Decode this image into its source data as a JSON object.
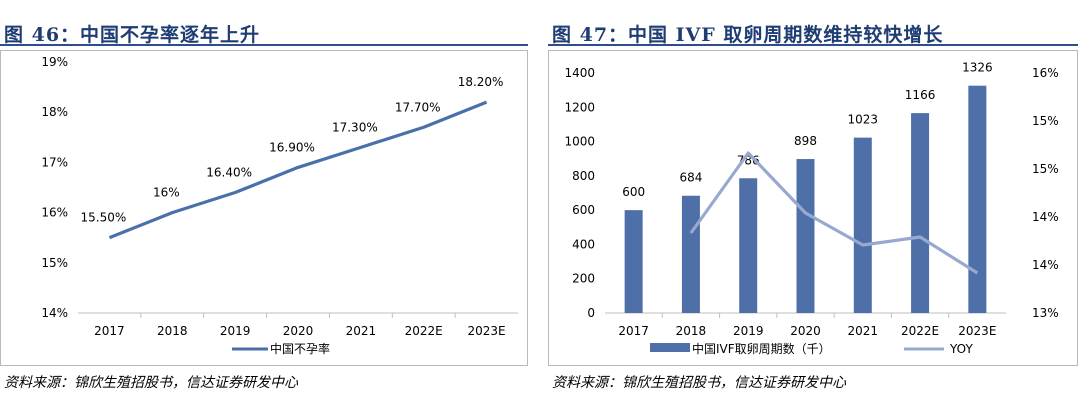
{
  "left_panel": {
    "figure_title": "图 46：中国不孕率逐年上升",
    "source": "资料来源：锦欣生殖招股书，信达证券研发中心"
  },
  "right_panel": {
    "figure_title": "图 47：中国 IVF 取卵周期数维持较快增长",
    "source": "资料来源：锦欣生殖招股书，信达证券研发中心"
  },
  "colors": {
    "bar": "#4f6fa8",
    "line_main": "#4a70ab",
    "line_yoy": "#98a9d0",
    "title": "#1f3c73"
  },
  "chart_data": [
    {
      "type": "line",
      "title": "",
      "categories": [
        "2017",
        "2018",
        "2019",
        "2020",
        "2021",
        "2022E",
        "2023E"
      ],
      "series": [
        {
          "name": "中国不孕率",
          "values": [
            15.5,
            16.0,
            16.4,
            16.9,
            17.3,
            17.7,
            18.2
          ],
          "labels": [
            "15.50%",
            "16%",
            "16.40%",
            "16.90%",
            "17.30%",
            "17.70%",
            "18.20%"
          ]
        }
      ],
      "ylim": [
        14,
        19
      ],
      "yticks": [
        "14%",
        "15%",
        "16%",
        "17%",
        "18%",
        "19%"
      ],
      "grid": false,
      "legend": "bottom"
    },
    {
      "type": "bar",
      "title": "",
      "categories": [
        "2017",
        "2018",
        "2019",
        "2020",
        "2021",
        "2022E",
        "2023E"
      ],
      "series": [
        {
          "name": "中国IVF取卵周期数（千）",
          "type": "bar",
          "axis": "left",
          "values": [
            600,
            684,
            786,
            898,
            1023,
            1166,
            1326
          ],
          "labels": [
            "600",
            "684",
            "786",
            "898",
            "1023",
            "1166",
            "1326"
          ]
        },
        {
          "name": "YOY",
          "type": "line",
          "axis": "right",
          "values": [
            null,
            14.0,
            15.0,
            14.25,
            13.85,
            13.95,
            13.5
          ]
        }
      ],
      "ylim_left": [
        0,
        1400
      ],
      "yticks_left": [
        "0",
        "200",
        "400",
        "600",
        "800",
        "1000",
        "1200",
        "1400"
      ],
      "ylim_right": [
        13,
        16
      ],
      "yticks_right": [
        "13%",
        "14%",
        "14%",
        "15%",
        "15%",
        "16%"
      ],
      "grid": false,
      "legend": "bottom"
    }
  ]
}
